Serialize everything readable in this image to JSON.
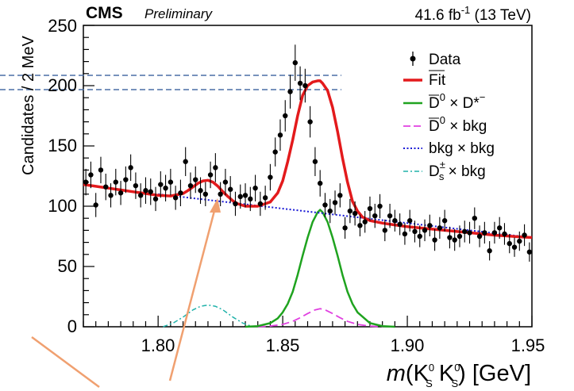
{
  "header": {
    "experiment": "CMS",
    "status": "Preliminary",
    "lumi_value": "41.6 fb",
    "lumi_exp": "-1",
    "energy": " (13 TeV)"
  },
  "axes": {
    "ylabel": "Candidates / 2 MeV",
    "xlabel_m": "m",
    "xlabel_open": "(K",
    "xlabel_sub1": "S",
    "xlabel_sup1": "0",
    "xlabel_mid": " K",
    "xlabel_sub2": "S",
    "xlabel_sup2": "0",
    "xlabel_close": ") [GeV]"
  },
  "legend": {
    "data": "Data",
    "fit": "Fit",
    "d0dstar": {
      "a": "D",
      "a_sup": "0",
      "b": " × D*",
      "b_sup": "−"
    },
    "d0bkg": {
      "a": "D",
      "a_sup": "0",
      "b": " × bkg"
    },
    "bkgbkg": "bkg × bkg",
    "dsbkg": {
      "a": "D",
      "a_sup": "±",
      "a_sub": "s",
      "b": " × bkg"
    }
  },
  "chart_data": {
    "type": "scatter",
    "xlim": [
      1.77,
      1.95
    ],
    "ylim": [
      0,
      250
    ],
    "x_ticks": [
      "1.80",
      "1.85",
      "1.90",
      "1.95"
    ],
    "y_ticks": [
      "0",
      "50",
      "100",
      "150",
      "200",
      "250"
    ],
    "colors": {
      "data": "#000000",
      "fit": "#e31a1c",
      "d0dstar": "#1fa31f",
      "d0bkg": "#e040e0",
      "bkgbkg": "#1a1ad6",
      "dsbkg": "#20b2aa",
      "annotation": "#f0a070",
      "guide": "#4a6fa5"
    },
    "series": [
      {
        "name": "Data",
        "style": "points",
        "x": [
          1.771,
          1.773,
          1.775,
          1.777,
          1.779,
          1.781,
          1.783,
          1.785,
          1.787,
          1.789,
          1.791,
          1.793,
          1.795,
          1.797,
          1.799,
          1.801,
          1.803,
          1.805,
          1.807,
          1.809,
          1.811,
          1.813,
          1.815,
          1.817,
          1.819,
          1.821,
          1.823,
          1.825,
          1.827,
          1.829,
          1.831,
          1.833,
          1.835,
          1.837,
          1.839,
          1.841,
          1.843,
          1.845,
          1.847,
          1.849,
          1.851,
          1.853,
          1.855,
          1.857,
          1.859,
          1.861,
          1.863,
          1.865,
          1.867,
          1.869,
          1.871,
          1.873,
          1.875,
          1.877,
          1.879,
          1.881,
          1.883,
          1.885,
          1.887,
          1.889,
          1.891,
          1.893,
          1.895,
          1.897,
          1.899,
          1.901,
          1.903,
          1.905,
          1.907,
          1.909,
          1.911,
          1.913,
          1.915,
          1.917,
          1.919,
          1.921,
          1.923,
          1.925,
          1.927,
          1.929,
          1.931,
          1.933,
          1.935,
          1.937,
          1.939,
          1.941,
          1.943,
          1.945,
          1.947,
          1.949
        ],
        "y": [
          120,
          126,
          101,
          130,
          116,
          109,
          120,
          111,
          122,
          132,
          117,
          109,
          113,
          112,
          106,
          118,
          115,
          120,
          107,
          111,
          137,
          117,
          122,
          113,
          110,
          126,
          132,
          110,
          120,
          114,
          102,
          108,
          109,
          106,
          115,
          102,
          107,
          124,
          145,
          159,
          175,
          195,
          219,
          202,
          200,
          170,
          137,
          119,
          101,
          96,
          103,
          109,
          82,
          96,
          94,
          84,
          87,
          98,
          92,
          100,
          80,
          92,
          88,
          85,
          77,
          88,
          79,
          75,
          80,
          84,
          72,
          82,
          88,
          74,
          72,
          75,
          79,
          78,
          90,
          75,
          78,
          63,
          78,
          82,
          77,
          69,
          66,
          71,
          76,
          62
        ],
        "err": [
          11,
          11,
          10,
          11,
          11,
          10,
          11,
          10,
          11,
          11,
          11,
          10,
          11,
          11,
          10,
          11,
          11,
          11,
          10,
          11,
          12,
          11,
          11,
          11,
          10,
          11,
          12,
          10,
          11,
          11,
          10,
          10,
          10,
          10,
          11,
          10,
          10,
          11,
          12,
          13,
          13,
          14,
          15,
          14,
          14,
          13,
          12,
          11,
          10,
          10,
          10,
          10,
          9,
          10,
          10,
          9,
          9,
          10,
          10,
          10,
          9,
          10,
          9,
          9,
          9,
          9,
          9,
          9,
          9,
          9,
          9,
          9,
          9,
          9,
          9,
          9,
          9,
          9,
          9,
          9,
          9,
          8,
          9,
          9,
          9,
          8,
          8,
          8,
          9,
          8
        ]
      },
      {
        "name": "Fit",
        "style": "solid",
        "x": [
          1.77,
          1.775,
          1.78,
          1.785,
          1.79,
          1.795,
          1.8,
          1.805,
          1.81,
          1.812,
          1.814,
          1.816,
          1.818,
          1.82,
          1.822,
          1.824,
          1.826,
          1.828,
          1.83,
          1.832,
          1.835,
          1.84,
          1.845,
          1.848,
          1.85,
          1.852,
          1.854,
          1.856,
          1.858,
          1.86,
          1.862,
          1.864,
          1.865,
          1.866,
          1.868,
          1.87,
          1.872,
          1.874,
          1.876,
          1.878,
          1.88,
          1.882,
          1.885,
          1.89,
          1.895,
          1.9,
          1.905,
          1.91,
          1.915,
          1.92,
          1.925,
          1.93,
          1.935,
          1.94,
          1.945,
          1.95
        ],
        "y": [
          118,
          116.5,
          115,
          113.5,
          112,
          110.5,
          109,
          108.5,
          110.5,
          113,
          116,
          119,
          121,
          121.5,
          120,
          116.5,
          112,
          108,
          104.5,
          102,
          100,
          100,
          103.5,
          111,
          121,
          137,
          155,
          175,
          192,
          200,
          203,
          204,
          204,
          202,
          196,
          182,
          162,
          140,
          120,
          104,
          96,
          91,
          88,
          86,
          84.5,
          83,
          82,
          81,
          80,
          79,
          78,
          77,
          76,
          75.3,
          74.6,
          74
        ]
      },
      {
        "name": "D0 x D*-",
        "style": "solid",
        "x": [
          1.835,
          1.84,
          1.845,
          1.848,
          1.85,
          1.852,
          1.854,
          1.856,
          1.858,
          1.86,
          1.862,
          1.864,
          1.865,
          1.866,
          1.868,
          1.87,
          1.872,
          1.874,
          1.876,
          1.878,
          1.88,
          1.885,
          1.89,
          1.895
        ],
        "y": [
          0,
          0.5,
          3,
          7,
          12,
          19,
          29,
          43,
          59,
          74,
          87,
          95,
          97,
          95,
          87,
          74,
          59,
          43,
          29,
          19,
          12,
          3,
          0.5,
          0
        ]
      },
      {
        "name": "D0 x bkg",
        "style": "dashed",
        "x": [
          1.84,
          1.845,
          1.85,
          1.854,
          1.857,
          1.86,
          1.863,
          1.865,
          1.867,
          1.87,
          1.873,
          1.876,
          1.88,
          1.885,
          1.89
        ],
        "y": [
          0,
          0.5,
          2,
          4.5,
          7.5,
          11,
          14,
          15,
          14,
          11,
          7.5,
          4.5,
          2,
          0.5,
          0
        ]
      },
      {
        "name": "bkg x bkg",
        "style": "dotted",
        "x": [
          1.8,
          1.95
        ],
        "y": [
          110,
          74
        ]
      },
      {
        "name": "Ds x bkg",
        "style": "dashdot",
        "x": [
          1.802,
          1.806,
          1.81,
          1.814,
          1.817,
          1.82,
          1.823,
          1.826,
          1.83,
          1.834,
          1.838
        ],
        "y": [
          0,
          3,
          8,
          14,
          17,
          18,
          17,
          14,
          8,
          3,
          0
        ]
      }
    ]
  }
}
